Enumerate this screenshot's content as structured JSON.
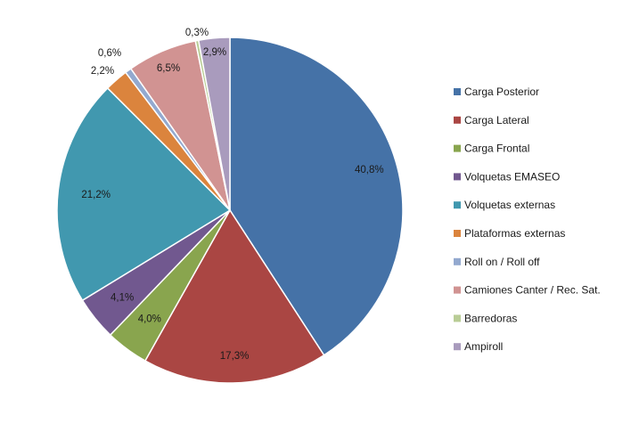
{
  "chart_data": {
    "type": "pie",
    "title": "",
    "legend_position": "right",
    "start_angle_deg": 0,
    "direction": "clockwise",
    "slices": [
      {
        "name": "Carga Posterior",
        "value": 40.8,
        "label": "40,8%",
        "color": "#4572A7"
      },
      {
        "name": "Carga Lateral",
        "value": 17.3,
        "label": "17,3%",
        "color": "#AA4643"
      },
      {
        "name": "Carga Frontal",
        "value": 4.0,
        "label": "4,0%",
        "color": "#89A54E"
      },
      {
        "name": "Volquetas EMASEO",
        "value": 4.1,
        "label": "4,1%",
        "color": "#71588F"
      },
      {
        "name": "Volquetas externas",
        "value": 21.2,
        "label": "21,2%",
        "color": "#4198AF"
      },
      {
        "name": "Plataformas externas",
        "value": 2.2,
        "label": "2,2%",
        "color": "#DB843D"
      },
      {
        "name": "Roll on / Roll off",
        "value": 0.6,
        "label": "0,6%",
        "color": "#93A9CF"
      },
      {
        "name": "Camiones Canter / Rec. Sat.",
        "value": 6.5,
        "label": "6,5%",
        "color": "#D19392"
      },
      {
        "name": "Barredoras",
        "value": 0.3,
        "label": "0,3%",
        "color": "#B9CD96"
      },
      {
        "name": "Ampiroll",
        "value": 2.9,
        "label": "2,9%",
        "color": "#A99BBD"
      }
    ]
  }
}
